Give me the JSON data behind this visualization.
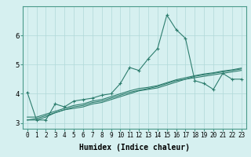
{
  "xlabel": "Humidex (Indice chaleur)",
  "ylabel": "",
  "x_values": [
    0,
    1,
    2,
    3,
    4,
    5,
    6,
    7,
    8,
    9,
    10,
    11,
    12,
    13,
    14,
    15,
    16,
    17,
    18,
    19,
    20,
    21,
    22,
    23
  ],
  "line1": [
    4.05,
    3.1,
    3.1,
    3.65,
    3.55,
    3.75,
    3.8,
    3.85,
    3.95,
    4.0,
    4.35,
    4.9,
    4.8,
    5.2,
    5.55,
    6.7,
    6.2,
    5.9,
    4.45,
    4.35,
    4.15,
    4.7,
    4.5,
    4.5
  ],
  "line2": [
    3.1,
    3.1,
    3.2,
    3.35,
    3.45,
    3.5,
    3.55,
    3.65,
    3.7,
    3.8,
    3.9,
    4.0,
    4.1,
    4.15,
    4.2,
    4.3,
    4.4,
    4.5,
    4.55,
    4.6,
    4.65,
    4.7,
    4.75,
    4.8
  ],
  "line3": [
    3.1,
    3.15,
    3.25,
    3.35,
    3.45,
    3.55,
    3.6,
    3.7,
    3.75,
    3.85,
    3.95,
    4.05,
    4.12,
    4.18,
    4.25,
    4.35,
    4.45,
    4.5,
    4.6,
    4.65,
    4.7,
    4.75,
    4.8,
    4.85
  ],
  "line4": [
    3.2,
    3.2,
    3.3,
    3.4,
    3.5,
    3.6,
    3.65,
    3.75,
    3.8,
    3.9,
    4.0,
    4.1,
    4.18,
    4.22,
    4.28,
    4.38,
    4.48,
    4.55,
    4.62,
    4.68,
    4.72,
    4.78,
    4.82,
    4.88
  ],
  "line_color": "#2d7d6e",
  "bg_color": "#d6f0f0",
  "grid_color": "#b0d8d8",
  "ylim": [
    2.8,
    7.0
  ],
  "xlim": [
    -0.5,
    23.5
  ],
  "tick_fontsize": 5.5,
  "label_fontsize": 7
}
